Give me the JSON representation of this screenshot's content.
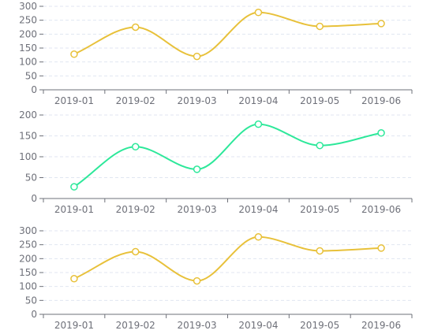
{
  "chart_data": [
    {
      "type": "line",
      "smooth": true,
      "categories": [
        "2019-01",
        "2019-02",
        "2019-03",
        "2019-04",
        "2019-05",
        "2019-06"
      ],
      "ylim": [
        0,
        300
      ],
      "yticks": [
        0,
        50,
        100,
        150,
        200,
        250,
        300
      ],
      "grid": "dashed-horizontal",
      "series": [
        {
          "color": "#e8c13a",
          "values": [
            128,
            225,
            120,
            278,
            228,
            238
          ]
        }
      ]
    },
    {
      "type": "line",
      "smooth": true,
      "categories": [
        "2019-01",
        "2019-02",
        "2019-03",
        "2019-04",
        "2019-05",
        "2019-06"
      ],
      "ylim": [
        0,
        200
      ],
      "yticks": [
        0,
        50,
        100,
        150,
        200
      ],
      "grid": "dashed-horizontal",
      "series": [
        {
          "color": "#2de89a",
          "values": [
            28,
            124,
            70,
            178,
            127,
            157
          ]
        }
      ]
    },
    {
      "type": "line",
      "smooth": true,
      "categories": [
        "2019-01",
        "2019-02",
        "2019-03",
        "2019-04",
        "2019-05",
        "2019-06"
      ],
      "ylim": [
        0,
        300
      ],
      "yticks": [
        0,
        50,
        100,
        150,
        200,
        250,
        300
      ],
      "grid": "dashed-horizontal",
      "series": [
        {
          "color": "#e8c13a",
          "values": [
            128,
            225,
            120,
            278,
            228,
            238
          ]
        }
      ]
    }
  ]
}
